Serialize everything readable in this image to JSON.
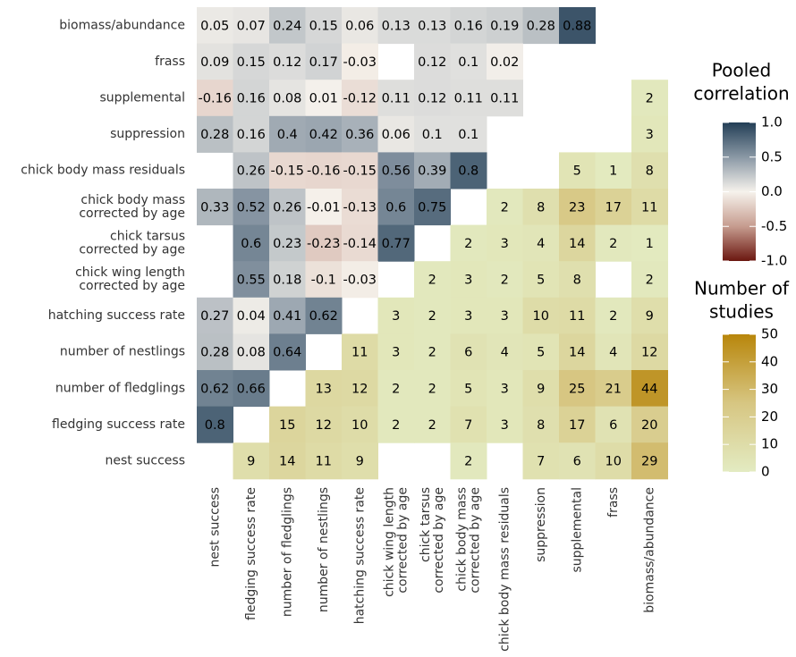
{
  "chart_data": {
    "type": "heatmap",
    "rows": [
      [
        "biomass/abundance"
      ],
      [
        "frass"
      ],
      [
        "supplemental"
      ],
      [
        "suppression"
      ],
      [
        "chick body mass residuals"
      ],
      [
        "chick body mass",
        "corrected by age"
      ],
      [
        "chick tarsus",
        "corrected by age"
      ],
      [
        "chick wing length",
        "corrected by age"
      ],
      [
        "hatching success rate"
      ],
      [
        "number of nestlings"
      ],
      [
        "number of fledglings"
      ],
      [
        "fledging success rate"
      ],
      [
        "nest success"
      ]
    ],
    "columns": [
      [
        "nest success"
      ],
      [
        "fledging success rate"
      ],
      [
        "number of fledglings"
      ],
      [
        "number of nestlings"
      ],
      [
        "hatching success rate"
      ],
      [
        "chick wing length",
        "corrected by age"
      ],
      [
        "chick tarsus",
        "corrected by age"
      ],
      [
        "chick body mass",
        "corrected by age"
      ],
      [
        "chick body mass residuals"
      ],
      [
        "suppression"
      ],
      [
        "supplemental"
      ],
      [
        "frass"
      ],
      [
        "biomass/abundance"
      ]
    ],
    "correlation": [
      [
        0.05,
        0.07,
        0.24,
        0.15,
        0.06,
        0.13,
        0.13,
        0.16,
        0.19,
        0.28,
        0.88,
        null,
        null
      ],
      [
        0.09,
        0.15,
        0.12,
        0.17,
        -0.03,
        null,
        0.12,
        0.1,
        0.02,
        null,
        null,
        null,
        null
      ],
      [
        -0.16,
        0.16,
        0.08,
        0.01,
        -0.12,
        0.11,
        0.12,
        0.11,
        0.11,
        null,
        null,
        null,
        null
      ],
      [
        0.28,
        0.16,
        0.4,
        0.42,
        0.36,
        0.06,
        0.1,
        0.1,
        null,
        null,
        null,
        null,
        null
      ],
      [
        null,
        0.26,
        -0.15,
        -0.16,
        -0.15,
        0.56,
        0.39,
        0.8,
        null,
        null,
        null,
        null,
        null
      ],
      [
        0.33,
        0.52,
        0.26,
        -0.01,
        -0.13,
        0.6,
        0.75,
        null,
        null,
        null,
        null,
        null,
        null
      ],
      [
        null,
        0.6,
        0.23,
        -0.23,
        -0.14,
        0.77,
        null,
        null,
        null,
        null,
        null,
        null,
        null
      ],
      [
        null,
        0.55,
        0.18,
        -0.1,
        -0.03,
        null,
        null,
        null,
        null,
        null,
        null,
        null,
        null
      ],
      [
        0.27,
        0.04,
        0.41,
        0.62,
        null,
        null,
        null,
        null,
        null,
        null,
        null,
        null,
        null
      ],
      [
        0.28,
        0.08,
        0.64,
        null,
        null,
        null,
        null,
        null,
        null,
        null,
        null,
        null,
        null
      ],
      [
        0.62,
        0.66,
        null,
        null,
        null,
        null,
        null,
        null,
        null,
        null,
        null,
        null,
        null
      ],
      [
        0.8,
        null,
        null,
        null,
        null,
        null,
        null,
        null,
        null,
        null,
        null,
        null,
        null
      ],
      [
        null,
        null,
        null,
        null,
        null,
        null,
        null,
        null,
        null,
        null,
        null,
        null,
        null
      ]
    ],
    "studies": [
      [
        null,
        null,
        null,
        null,
        null,
        null,
        null,
        null,
        null,
        null,
        null,
        null,
        null
      ],
      [
        null,
        null,
        null,
        null,
        null,
        null,
        null,
        null,
        null,
        null,
        null,
        null,
        null
      ],
      [
        null,
        null,
        null,
        null,
        null,
        null,
        null,
        null,
        null,
        null,
        null,
        null,
        2
      ],
      [
        null,
        null,
        null,
        null,
        null,
        null,
        null,
        null,
        null,
        null,
        null,
        null,
        3
      ],
      [
        null,
        null,
        null,
        null,
        null,
        null,
        null,
        null,
        null,
        null,
        5,
        1,
        8
      ],
      [
        null,
        null,
        null,
        null,
        null,
        null,
        null,
        null,
        2,
        8,
        23,
        17,
        11
      ],
      [
        null,
        null,
        null,
        null,
        null,
        null,
        null,
        2,
        3,
        4,
        14,
        2,
        1
      ],
      [
        null,
        null,
        null,
        null,
        null,
        null,
        2,
        3,
        2,
        5,
        8,
        null,
        2
      ],
      [
        null,
        null,
        null,
        null,
        null,
        3,
        2,
        3,
        3,
        10,
        11,
        2,
        9
      ],
      [
        null,
        null,
        null,
        null,
        11,
        3,
        2,
        6,
        4,
        5,
        14,
        4,
        12
      ],
      [
        null,
        null,
        null,
        13,
        12,
        2,
        2,
        5,
        3,
        9,
        25,
        21,
        44
      ],
      [
        null,
        null,
        15,
        12,
        10,
        2,
        2,
        7,
        3,
        8,
        17,
        6,
        20
      ],
      [
        null,
        9,
        14,
        11,
        9,
        null,
        null,
        2,
        null,
        7,
        6,
        10,
        29
      ]
    ],
    "correlation_legend": {
      "title": [
        "Pooled",
        "correlation"
      ],
      "lim": [
        -1,
        1
      ],
      "ticks": [
        {
          "value": 1,
          "label": "1.0"
        },
        0.5,
        {
          "value": 0,
          "label": "0.0"
        },
        -0.5,
        {
          "value": -1,
          "label": "-1.0"
        }
      ],
      "colors": [
        "#6b1710",
        "#c69c8f",
        "#f6f2ec",
        "#8a98a5",
        "#233f56"
      ]
    },
    "studies_legend": {
      "title": [
        "Number of",
        "studies"
      ],
      "lim": [
        0,
        50
      ],
      "ticks": [
        50,
        40,
        30,
        20,
        10,
        0
      ],
      "colors": [
        "#e3ebc2",
        "#d7c682",
        "#b8860b"
      ]
    }
  }
}
